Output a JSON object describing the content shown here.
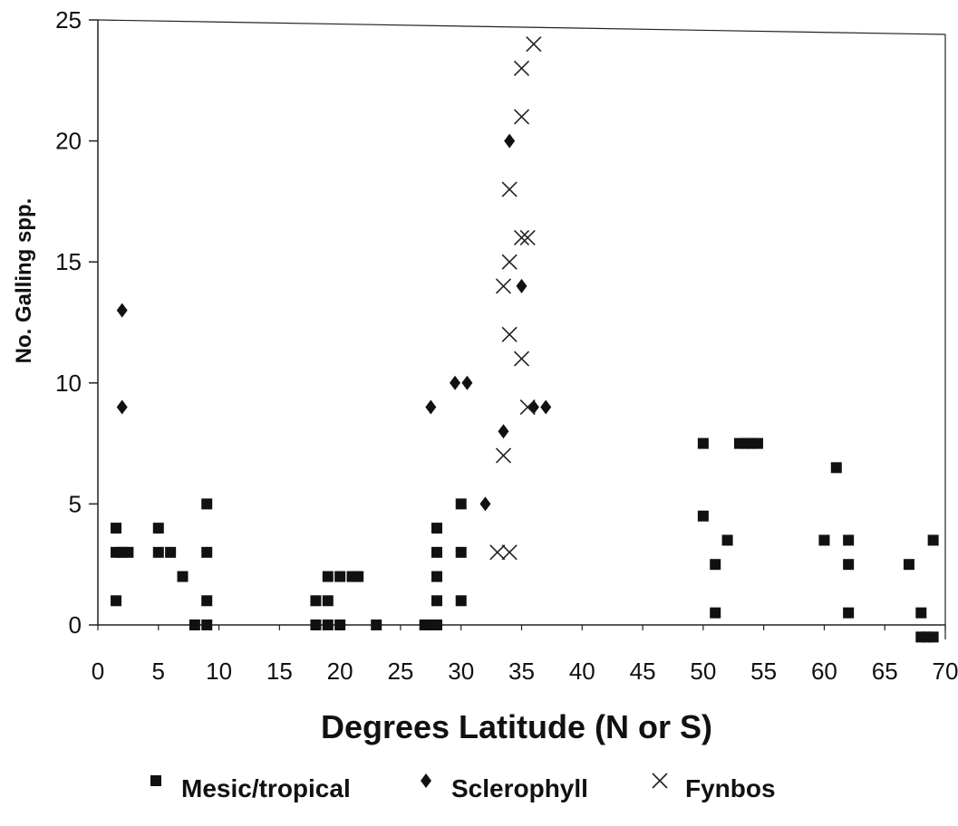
{
  "chart_data": {
    "type": "scatter",
    "title": "",
    "xlabel": "Degrees Latitude (N or S)",
    "ylabel": "No. Galling spp.",
    "xlim": [
      0,
      70
    ],
    "ylim": [
      0,
      25
    ],
    "xticks": [
      "0",
      "5",
      "10",
      "15",
      "20",
      "25",
      "30",
      "35",
      "40",
      "45",
      "50",
      "55",
      "60",
      "65",
      "70"
    ],
    "yticks": [
      "0",
      "5",
      "10",
      "15",
      "20",
      "25"
    ],
    "grid": false,
    "legend_position": "bottom",
    "series": [
      {
        "name": "Mesic/tropical",
        "marker": "square",
        "points": [
          [
            1.5,
            1
          ],
          [
            1.5,
            4
          ],
          [
            1.5,
            3
          ],
          [
            2,
            3
          ],
          [
            2.5,
            3
          ],
          [
            5,
            4
          ],
          [
            5,
            3
          ],
          [
            6,
            3
          ],
          [
            7,
            2
          ],
          [
            8,
            0
          ],
          [
            9,
            0
          ],
          [
            9,
            1
          ],
          [
            9,
            3
          ],
          [
            9,
            5
          ],
          [
            18,
            1
          ],
          [
            18,
            0
          ],
          [
            19,
            1
          ],
          [
            19,
            2
          ],
          [
            19,
            0
          ],
          [
            20,
            0
          ],
          [
            20,
            2
          ],
          [
            21,
            2
          ],
          [
            21.5,
            2
          ],
          [
            23,
            0
          ],
          [
            27,
            0
          ],
          [
            27.5,
            0
          ],
          [
            28,
            0
          ],
          [
            28,
            1
          ],
          [
            28,
            2
          ],
          [
            28,
            3
          ],
          [
            28,
            4
          ],
          [
            30,
            1
          ],
          [
            30,
            3
          ],
          [
            30,
            5
          ],
          [
            50,
            4.5
          ],
          [
            50,
            7.5
          ],
          [
            51,
            2.5
          ],
          [
            51,
            0.5
          ],
          [
            52,
            3.5
          ],
          [
            53,
            7.5
          ],
          [
            53.5,
            7.5
          ],
          [
            54,
            7.5
          ],
          [
            54.5,
            7.5
          ],
          [
            60,
            3.5
          ],
          [
            61,
            6.5
          ],
          [
            62,
            3.5
          ],
          [
            62,
            2.5
          ],
          [
            62,
            0.5
          ],
          [
            67,
            2.5
          ],
          [
            68,
            0.5
          ],
          [
            68,
            -0.5
          ],
          [
            68.5,
            -0.5
          ],
          [
            69,
            -0.5
          ],
          [
            69,
            3.5
          ]
        ]
      },
      {
        "name": "Sclerophyll",
        "marker": "diamond",
        "points": [
          [
            2,
            13
          ],
          [
            2,
            9
          ],
          [
            27.5,
            9
          ],
          [
            29.5,
            10
          ],
          [
            30.5,
            10
          ],
          [
            32,
            5
          ],
          [
            33.5,
            8
          ],
          [
            34,
            20
          ],
          [
            35,
            14
          ],
          [
            36,
            9
          ],
          [
            37,
            9
          ]
        ]
      },
      {
        "name": "Fynbos",
        "marker": "cross",
        "points": [
          [
            33,
            3
          ],
          [
            34,
            3
          ],
          [
            33.5,
            7
          ],
          [
            33.5,
            14
          ],
          [
            34,
            12
          ],
          [
            34,
            15
          ],
          [
            34,
            18
          ],
          [
            35,
            11
          ],
          [
            35,
            16
          ],
          [
            35.5,
            9
          ],
          [
            35.5,
            16
          ],
          [
            35,
            21
          ],
          [
            35,
            23
          ],
          [
            36,
            24
          ]
        ]
      }
    ]
  }
}
